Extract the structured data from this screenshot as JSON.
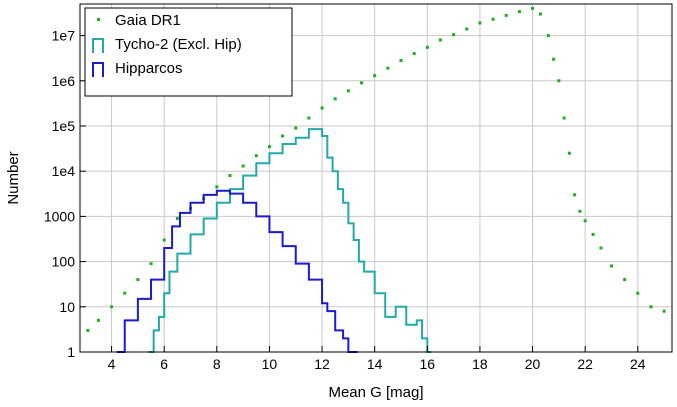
{
  "chart_data": {
    "type": "scatter",
    "xlabel": "Mean G [mag]",
    "ylabel": "Number",
    "xlim": [
      2.8,
      25.3
    ],
    "ylim": [
      1,
      50000000
    ],
    "y_scale": "log",
    "grid": true,
    "legend_position": "top-left",
    "x_ticks": [
      4,
      6,
      8,
      10,
      12,
      14,
      16,
      18,
      20,
      22,
      24
    ],
    "x_tick_labels": [
      "4",
      "6",
      "8",
      "10",
      "12",
      "14",
      "16",
      "18",
      "20",
      "22",
      "24"
    ],
    "y_ticks": [
      1,
      10,
      100,
      1000,
      10000,
      100000,
      1000000,
      10000000
    ],
    "y_tick_labels": [
      "1",
      "10",
      "100",
      "1000",
      "1e4",
      "1e5",
      "1e6",
      "1e7"
    ],
    "series": [
      {
        "name": "Gaia DR1",
        "style": "points",
        "color": "#22aa22",
        "x": [
          3.1,
          3.5,
          4.0,
          4.5,
          5.0,
          5.5,
          6.0,
          6.5,
          7.0,
          7.5,
          8.0,
          8.5,
          9.0,
          9.5,
          10.0,
          10.5,
          11.0,
          11.5,
          12.0,
          12.5,
          13.0,
          13.5,
          14.0,
          14.5,
          15.0,
          15.5,
          16.0,
          16.5,
          17.0,
          17.5,
          18.0,
          18.5,
          19.0,
          19.5,
          20.0,
          20.3,
          20.6,
          20.8,
          21.0,
          21.2,
          21.4,
          21.6,
          21.8,
          22.0,
          22.3,
          22.6,
          23.0,
          23.5,
          24.0,
          24.5,
          25.0
        ],
        "y": [
          3,
          5,
          10,
          20,
          40,
          90,
          300,
          900,
          1500,
          2500,
          4500,
          8000,
          13000,
          22000,
          35000,
          60000,
          90000,
          150000,
          250000,
          400000,
          600000,
          900000,
          1300000,
          1900000,
          2800000,
          4000000,
          5500000,
          8000000,
          10500000,
          14000000,
          19000000,
          23000000,
          28000000,
          34000000,
          40000000,
          30000000,
          10000000,
          3000000,
          1000000,
          150000,
          25000,
          3000,
          1300,
          800,
          400,
          200,
          80,
          40,
          20,
          10,
          8
        ]
      },
      {
        "name": "Tycho-2 (Excl. Hip)",
        "style": "step",
        "color": "#22aaaa",
        "x": [
          5.4,
          5.6,
          5.8,
          6.0,
          6.2,
          6.5,
          7.0,
          7.5,
          8.0,
          8.5,
          9.0,
          9.5,
          10.0,
          10.5,
          11.0,
          11.5,
          11.8,
          12.0,
          12.2,
          12.4,
          12.6,
          12.8,
          13.0,
          13.2,
          13.4,
          13.6,
          14.0,
          14.4,
          14.8,
          15.2,
          15.6,
          15.8,
          16.0
        ],
        "y": [
          1,
          3,
          6,
          20,
          60,
          150,
          400,
          900,
          2000,
          4000,
          8000,
          15000,
          25000,
          40000,
          55000,
          85000,
          85000,
          60000,
          20000,
          10000,
          4000,
          2000,
          700,
          300,
          100,
          60,
          20,
          6,
          10,
          4,
          5,
          2,
          1
        ]
      },
      {
        "name": "Hipparcos",
        "style": "step",
        "color": "#1a1ad0",
        "x": [
          4.2,
          4.5,
          5.0,
          5.5,
          6.0,
          6.3,
          6.6,
          7.0,
          7.5,
          8.0,
          8.5,
          9.0,
          9.5,
          10.0,
          10.5,
          11.0,
          11.5,
          12.0,
          12.2,
          12.5,
          12.8,
          13.0,
          13.2
        ],
        "y": [
          1,
          5,
          15,
          40,
          200,
          600,
          1200,
          2000,
          3000,
          3700,
          3200,
          2000,
          1000,
          450,
          220,
          90,
          40,
          12,
          8,
          3,
          2,
          1,
          1
        ]
      }
    ]
  }
}
